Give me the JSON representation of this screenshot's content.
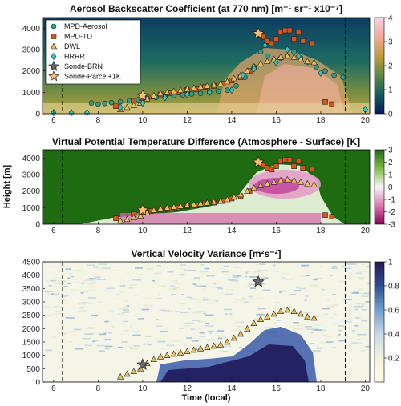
{
  "chart_data": [
    {
      "type": "heatmap",
      "title": "Aerosol Backscatter Coefficient (at 770 nm) [m⁻¹ sr⁻¹ x10⁻⁷]",
      "xlabel": "",
      "ylabel": "",
      "xlim": [
        5.5,
        20.2
      ],
      "ylim": [
        0,
        4500
      ],
      "xticks": [
        "6",
        "8",
        "10",
        "12",
        "14",
        "16",
        "18",
        "20"
      ],
      "yticks": [
        "0",
        "1000",
        "2000",
        "3000",
        "4000"
      ],
      "colorbar": {
        "min": 0,
        "max": 4,
        "ticks": [
          "0",
          "1",
          "2",
          "3",
          "4"
        ],
        "colormap": "batlow-like"
      },
      "vlines": [
        6.4,
        19.1
      ],
      "legend": {
        "placement": "top-left",
        "entries": [
          "MPD-Aerosol",
          "MPD-TD",
          "DWL",
          "HRRR",
          "Sonde-BRN",
          "Sonde-Parcel+1K"
        ]
      },
      "series": [
        {
          "name": "MPD-Aerosol",
          "marker": "circle",
          "color": "#2e9e87",
          "x": [
            7.7,
            8.0,
            8.3,
            8.6,
            9.0,
            9.4,
            9.8,
            10.2,
            10.6,
            11.0,
            11.4,
            11.8,
            12.2,
            12.6,
            13.0,
            13.4,
            13.8,
            14.2,
            14.6,
            15.0,
            15.3,
            15.6,
            15.9,
            16.2,
            16.5,
            16.8,
            17.1,
            17.4,
            17.8,
            18.2,
            18.6,
            19.0
          ],
          "y": [
            500,
            450,
            480,
            520,
            560,
            600,
            650,
            720,
            760,
            800,
            850,
            880,
            920,
            950,
            1000,
            1050,
            1100,
            1300,
            1700,
            2200,
            2900,
            2700,
            2500,
            2600,
            2700,
            2900,
            2600,
            2400,
            2200,
            2000,
            1800,
            1700
          ]
        },
        {
          "name": "MPD-TD",
          "marker": "square",
          "color": "#d9541a",
          "x": [
            8.8,
            9.6,
            10.0,
            10.4,
            10.8,
            11.2,
            11.6,
            12.0,
            12.4,
            12.8,
            13.2,
            13.6,
            14.0,
            14.4,
            14.8,
            15.2,
            15.4,
            15.6,
            15.8,
            16.0,
            16.2,
            16.4,
            16.6,
            16.8,
            17.0,
            17.2,
            17.6,
            18.2,
            18.5
          ],
          "y": [
            350,
            600,
            750,
            800,
            900,
            950,
            1000,
            1100,
            1150,
            1250,
            1300,
            1400,
            1550,
            1700,
            2000,
            3700,
            3600,
            3400,
            3300,
            3500,
            3800,
            3900,
            3900,
            3500,
            3800,
            3400,
            3300,
            550,
            450
          ]
        },
        {
          "name": "DWL",
          "marker": "triangle",
          "color": "#e8c15a",
          "x": [
            9.0,
            9.3,
            9.6,
            9.9,
            10.2,
            10.5,
            10.8,
            11.1,
            11.4,
            11.7,
            12.0,
            12.3,
            12.6,
            12.9,
            13.2,
            13.5,
            13.8,
            14.1,
            14.4,
            14.7,
            15.0,
            15.3,
            15.6,
            15.9,
            16.2,
            16.5,
            16.8,
            17.1,
            17.4,
            17.7
          ],
          "y": [
            200,
            300,
            400,
            500,
            700,
            850,
            950,
            1000,
            1050,
            1100,
            1150,
            1200,
            1250,
            1300,
            1350,
            1400,
            1500,
            1650,
            1800,
            2000,
            2200,
            2350,
            2450,
            2550,
            2650,
            2700,
            2650,
            2550,
            2450,
            2400
          ]
        },
        {
          "name": "HRRR",
          "marker": "diamond",
          "color": "#31c6c6",
          "x": [
            6.0,
            6.8,
            7.5,
            9.0,
            10.0,
            11.0,
            12.0,
            13.0,
            14.0,
            14.5,
            15.0,
            15.5,
            16.0,
            16.5,
            17.0,
            18.0,
            20.0
          ],
          "y": [
            50,
            50,
            50,
            300,
            500,
            750,
            900,
            1000,
            1100,
            1800,
            2100,
            3200,
            2400,
            3000,
            2700,
            1900,
            200
          ]
        },
        {
          "name": "Sonde-BRN",
          "marker": "star",
          "color": "#666666",
          "x": [
            15.2
          ],
          "y": [
            3750
          ]
        },
        {
          "name": "Sonde-Parcel+1K",
          "marker": "star",
          "color": "#ffbe73",
          "x": [
            10.0,
            15.2
          ],
          "y": [
            850,
            3750
          ]
        }
      ]
    },
    {
      "type": "heatmap",
      "title": "Virtual Potential Temperature Difference (Atmosphere - Surface) [K]",
      "xlabel": "",
      "ylabel": "Height [m]",
      "xlim": [
        5.5,
        20.2
      ],
      "ylim": [
        0,
        4500
      ],
      "xticks": [
        "6",
        "8",
        "10",
        "12",
        "14",
        "16",
        "18",
        "20"
      ],
      "yticks": [
        "0",
        "1000",
        "2000",
        "3000",
        "4000"
      ],
      "colorbar": {
        "min": -3,
        "max": 3,
        "ticks": [
          "3",
          "2",
          "1",
          "0",
          "-1",
          "-2",
          "-3"
        ],
        "colormap": "purple-white-green"
      },
      "vlines": [
        6.4,
        19.1
      ],
      "series": [
        {
          "name": "MPD-TD",
          "marker": "square",
          "color": "#d9541a",
          "x": [
            8.8,
            9.6,
            10.0,
            10.4,
            10.8,
            11.2,
            11.6,
            12.0,
            12.4,
            12.8,
            13.2,
            13.6,
            14.0,
            14.4,
            14.8,
            15.2,
            15.4,
            15.6,
            15.8,
            16.0,
            16.2,
            16.4,
            16.6,
            16.8,
            17.0,
            17.2,
            17.6,
            18.2,
            18.5
          ],
          "y": [
            350,
            600,
            750,
            800,
            900,
            950,
            1000,
            1100,
            1150,
            1250,
            1300,
            1400,
            1550,
            1700,
            2000,
            3700,
            3600,
            3400,
            3300,
            3500,
            3800,
            3900,
            3900,
            3500,
            3800,
            3400,
            3300,
            550,
            450
          ]
        },
        {
          "name": "DWL",
          "marker": "triangle",
          "color": "#e8c15a",
          "x": [
            9.0,
            9.3,
            9.6,
            9.9,
            10.2,
            10.5,
            10.8,
            11.1,
            11.4,
            11.7,
            12.0,
            12.3,
            12.6,
            12.9,
            13.2,
            13.5,
            13.8,
            14.1,
            14.4,
            14.7,
            15.0,
            15.3,
            15.6,
            15.9,
            16.2,
            16.5,
            16.8,
            17.1,
            17.4,
            17.7
          ],
          "y": [
            200,
            300,
            400,
            500,
            700,
            850,
            950,
            1000,
            1050,
            1100,
            1150,
            1200,
            1250,
            1300,
            1350,
            1400,
            1500,
            1650,
            1800,
            2000,
            2200,
            2350,
            2450,
            2550,
            2650,
            2700,
            2650,
            2550,
            2450,
            2400
          ]
        },
        {
          "name": "Sonde-Parcel+1K",
          "marker": "star",
          "color": "#ffbe73",
          "x": [
            10.0,
            15.2
          ],
          "y": [
            850,
            3750
          ]
        }
      ]
    },
    {
      "type": "heatmap",
      "title": "Vertical Velocity Variance [m²s⁻²]",
      "xlabel": "Time (local)",
      "ylabel": "",
      "xlim": [
        5.5,
        20.2
      ],
      "ylim": [
        0,
        4500
      ],
      "xticks": [
        "6",
        "8",
        "10",
        "12",
        "14",
        "16",
        "18",
        "20"
      ],
      "yticks": [
        "0",
        "500",
        "1000",
        "1500",
        "2000",
        "2500",
        "3000",
        "3500",
        "4000",
        "4500"
      ],
      "colorbar": {
        "min": 0,
        "max": 1,
        "ticks": [
          "1",
          "0.8",
          "0.6",
          "0.4",
          "0.2"
        ],
        "colormap": "yellow-white-blue-purple"
      },
      "vlines": [
        6.4,
        19.1
      ],
      "series": [
        {
          "name": "DWL",
          "marker": "triangle",
          "color": "#e8c15a",
          "x": [
            9.0,
            9.3,
            9.6,
            9.9,
            10.2,
            10.5,
            10.8,
            11.1,
            11.4,
            11.7,
            12.0,
            12.3,
            12.6,
            12.9,
            13.2,
            13.5,
            13.8,
            14.1,
            14.4,
            14.7,
            15.0,
            15.3,
            15.6,
            15.9,
            16.2,
            16.5,
            16.8,
            17.1,
            17.4,
            17.7
          ],
          "y": [
            200,
            300,
            400,
            500,
            700,
            850,
            950,
            1000,
            1050,
            1100,
            1150,
            1200,
            1250,
            1300,
            1350,
            1400,
            1500,
            1650,
            1800,
            2000,
            2200,
            2350,
            2450,
            2550,
            2650,
            2700,
            2650,
            2550,
            2450,
            2400
          ]
        },
        {
          "name": "Sonde-BRN",
          "marker": "star",
          "color": "#666666",
          "x": [
            10.0,
            15.2
          ],
          "y": [
            650,
            3750
          ]
        }
      ]
    }
  ]
}
